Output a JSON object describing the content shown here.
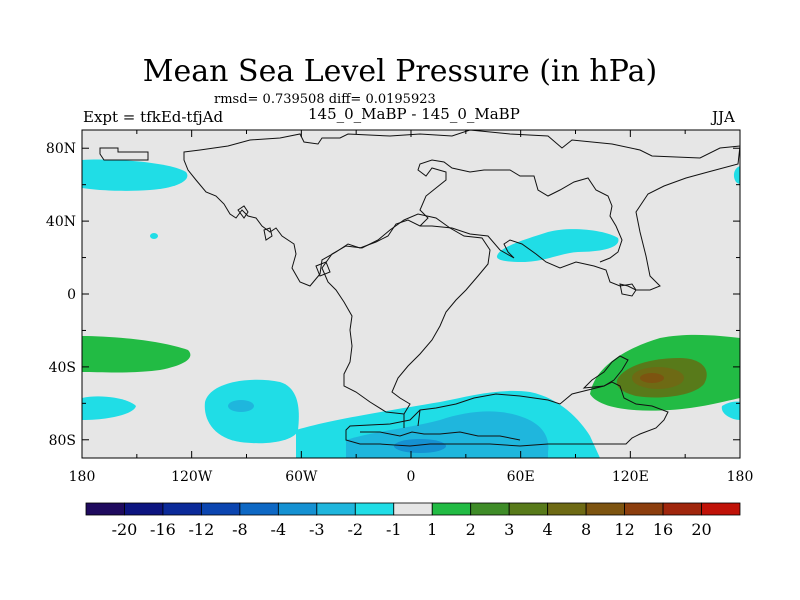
{
  "title": "Mean Sea Level Pressure (in hPa)",
  "stats_line": "rmsd= 0.739508 diff= 0.0195923",
  "left_label": "Expt = tfkEd-tfjAd",
  "center_label": "145_0_MaBP - 145_0_MaBP",
  "right_label": "JJA",
  "axes": {
    "x_ticks": [
      {
        "value": -180,
        "label": "180"
      },
      {
        "value": -120,
        "label": "120W"
      },
      {
        "value": -60,
        "label": "60W"
      },
      {
        "value": 0,
        "label": "0"
      },
      {
        "value": 60,
        "label": "60E"
      },
      {
        "value": 120,
        "label": "120E"
      },
      {
        "value": 180,
        "label": "180"
      }
    ],
    "y_ticks": [
      {
        "value": 80,
        "label": "80N"
      },
      {
        "value": 40,
        "label": "40N"
      },
      {
        "value": 0,
        "label": "0"
      },
      {
        "value": -40,
        "label": "40S"
      },
      {
        "value": -80,
        "label": "80S"
      }
    ],
    "lon_range": [
      -180,
      180
    ],
    "lat_range": [
      -90,
      90
    ]
  },
  "colorbar": {
    "colors": [
      "#1f0a5e",
      "#0d1580",
      "#0b2a99",
      "#0b45b0",
      "#0e68c4",
      "#1591d2",
      "#1fb6dd",
      "#20dde6",
      "#e6e6e6",
      "#22bb44",
      "#3f8c28",
      "#587a1a",
      "#6e6a14",
      "#7d5410",
      "#8c3e0e",
      "#a0260c",
      "#c01208"
    ],
    "labels": [
      "-20",
      "-16",
      "-12",
      "-8",
      "-4",
      "-3",
      "-2",
      "-1",
      "1",
      "2",
      "3",
      "4",
      "8",
      "12",
      "16",
      "20"
    ]
  },
  "field_colors": {
    "background": "#e6e6e6",
    "neg1": "#20dde6",
    "neg2": "#1fb6dd",
    "neg3": "#1591d2",
    "pos1": "#22bb44",
    "pos3": "#587a1a",
    "pos4": "#6e6a14",
    "pos8": "#7d5410"
  }
}
